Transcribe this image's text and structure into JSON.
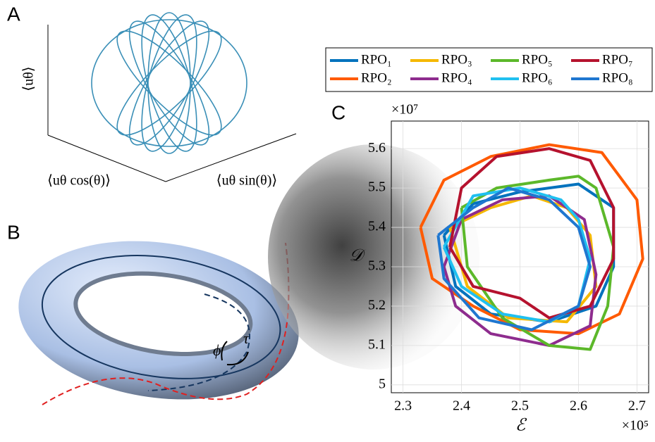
{
  "panels": {
    "A": {
      "label": "A",
      "axis_labels": [
        "⟨uθ⟩",
        "⟨uθ cos(θ)⟩",
        "⟨uθ sin(θ)⟩"
      ]
    },
    "B": {
      "label": "B",
      "symbols": [
        "ϕ",
        "τ"
      ]
    },
    "C": {
      "label": "C"
    }
  },
  "chart_data": {
    "type": "line",
    "xlabel": "ℰ",
    "ylabel": "𝒟",
    "x_multiplier": "×10⁵",
    "y_multiplier": "×10⁷",
    "xlim": [
      2.28,
      2.72
    ],
    "ylim": [
      4.98,
      5.67
    ],
    "xticks": [
      2.3,
      2.4,
      2.5,
      2.6,
      2.7
    ],
    "yticks": [
      5,
      5.1,
      5.2,
      5.3,
      5.4,
      5.5,
      5.6
    ],
    "grid": true,
    "series": [
      {
        "name": "RPO₁",
        "color": "#0072bd",
        "x": [
          2.37,
          2.42,
          2.5,
          2.6,
          2.66,
          2.66,
          2.63,
          2.55,
          2.45,
          2.39,
          2.37
        ],
        "values": [
          5.38,
          5.46,
          5.49,
          5.51,
          5.45,
          5.3,
          5.2,
          5.16,
          5.18,
          5.25,
          5.38
        ]
      },
      {
        "name": "RPO₂",
        "color": "#ff5a00",
        "x": [
          2.33,
          2.37,
          2.45,
          2.55,
          2.64,
          2.7,
          2.71,
          2.67,
          2.6,
          2.5,
          2.42,
          2.35,
          2.33
        ],
        "values": [
          5.4,
          5.52,
          5.58,
          5.61,
          5.59,
          5.47,
          5.32,
          5.18,
          5.13,
          5.14,
          5.2,
          5.27,
          5.4
        ]
      },
      {
        "name": "RPO₃",
        "color": "#f5b800",
        "x": [
          2.38,
          2.45,
          2.52,
          2.58,
          2.62,
          2.63,
          2.58,
          2.48,
          2.41,
          2.38
        ],
        "values": [
          5.4,
          5.45,
          5.48,
          5.45,
          5.38,
          5.25,
          5.16,
          5.17,
          5.25,
          5.4
        ]
      },
      {
        "name": "RPO₄",
        "color": "#8e2c8e",
        "x": [
          2.37,
          2.4,
          2.47,
          2.55,
          2.61,
          2.63,
          2.62,
          2.55,
          2.45,
          2.39,
          2.37
        ],
        "values": [
          5.3,
          5.42,
          5.47,
          5.48,
          5.42,
          5.28,
          5.15,
          5.1,
          5.13,
          5.2,
          5.3
        ]
      },
      {
        "name": "RPO₅",
        "color": "#5cb82a",
        "x": [
          2.4,
          2.46,
          2.55,
          2.6,
          2.63,
          2.66,
          2.65,
          2.62,
          2.55,
          2.47,
          2.41,
          2.4
        ],
        "values": [
          5.45,
          5.5,
          5.52,
          5.53,
          5.5,
          5.35,
          5.2,
          5.09,
          5.1,
          5.17,
          5.3,
          5.45
        ]
      },
      {
        "name": "RPO₆",
        "color": "#20c0f0",
        "x": [
          2.37,
          2.42,
          2.5,
          2.57,
          2.6,
          2.62,
          2.6,
          2.55,
          2.47,
          2.4,
          2.37
        ],
        "values": [
          5.35,
          5.48,
          5.5,
          5.47,
          5.42,
          5.32,
          5.2,
          5.16,
          5.18,
          5.25,
          5.35
        ]
      },
      {
        "name": "RPO₇",
        "color": "#b5122e",
        "x": [
          2.38,
          2.4,
          2.46,
          2.55,
          2.62,
          2.66,
          2.66,
          2.62,
          2.55,
          2.5,
          2.42,
          2.38
        ],
        "values": [
          5.35,
          5.5,
          5.58,
          5.6,
          5.57,
          5.45,
          5.32,
          5.2,
          5.17,
          5.22,
          5.25,
          5.35
        ]
      },
      {
        "name": "RPO₈",
        "color": "#1f77d0",
        "x": [
          2.36,
          2.42,
          2.48,
          2.55,
          2.6,
          2.62,
          2.6,
          2.52,
          2.43,
          2.37,
          2.36
        ],
        "values": [
          5.38,
          5.45,
          5.5,
          5.47,
          5.4,
          5.3,
          5.2,
          5.14,
          5.17,
          5.27,
          5.38
        ]
      }
    ]
  }
}
